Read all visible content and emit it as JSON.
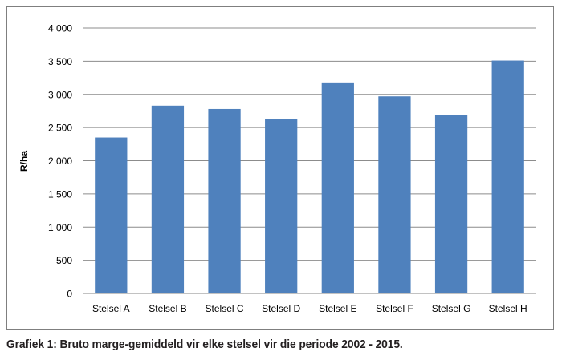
{
  "chart_data": {
    "type": "bar",
    "title": "",
    "xlabel": "",
    "ylabel": "R/ha",
    "categories": [
      "Stelsel A",
      "Stelsel B",
      "Stelsel C",
      "Stelsel D",
      "Stelsel E",
      "Stelsel F",
      "Stelsel G",
      "Stelsel H"
    ],
    "values": [
      2350,
      2830,
      2780,
      2630,
      3180,
      2970,
      2690,
      3510
    ],
    "ylim": [
      0,
      4000
    ],
    "yticks": [
      0,
      500,
      1000,
      1500,
      2000,
      2500,
      3000,
      3500,
      4000
    ],
    "ytick_labels": [
      "0",
      "500",
      "1 000",
      "1 500",
      "2 000",
      "2 500",
      "3 000",
      "3 500",
      "4 000"
    ],
    "grid": "horizontal",
    "legend": "none",
    "bar_color": "#4f81bd"
  },
  "caption": "Grafiek 1: Bruto marge-gemiddeld vir elke stelsel vir die periode 2002 - 2015."
}
